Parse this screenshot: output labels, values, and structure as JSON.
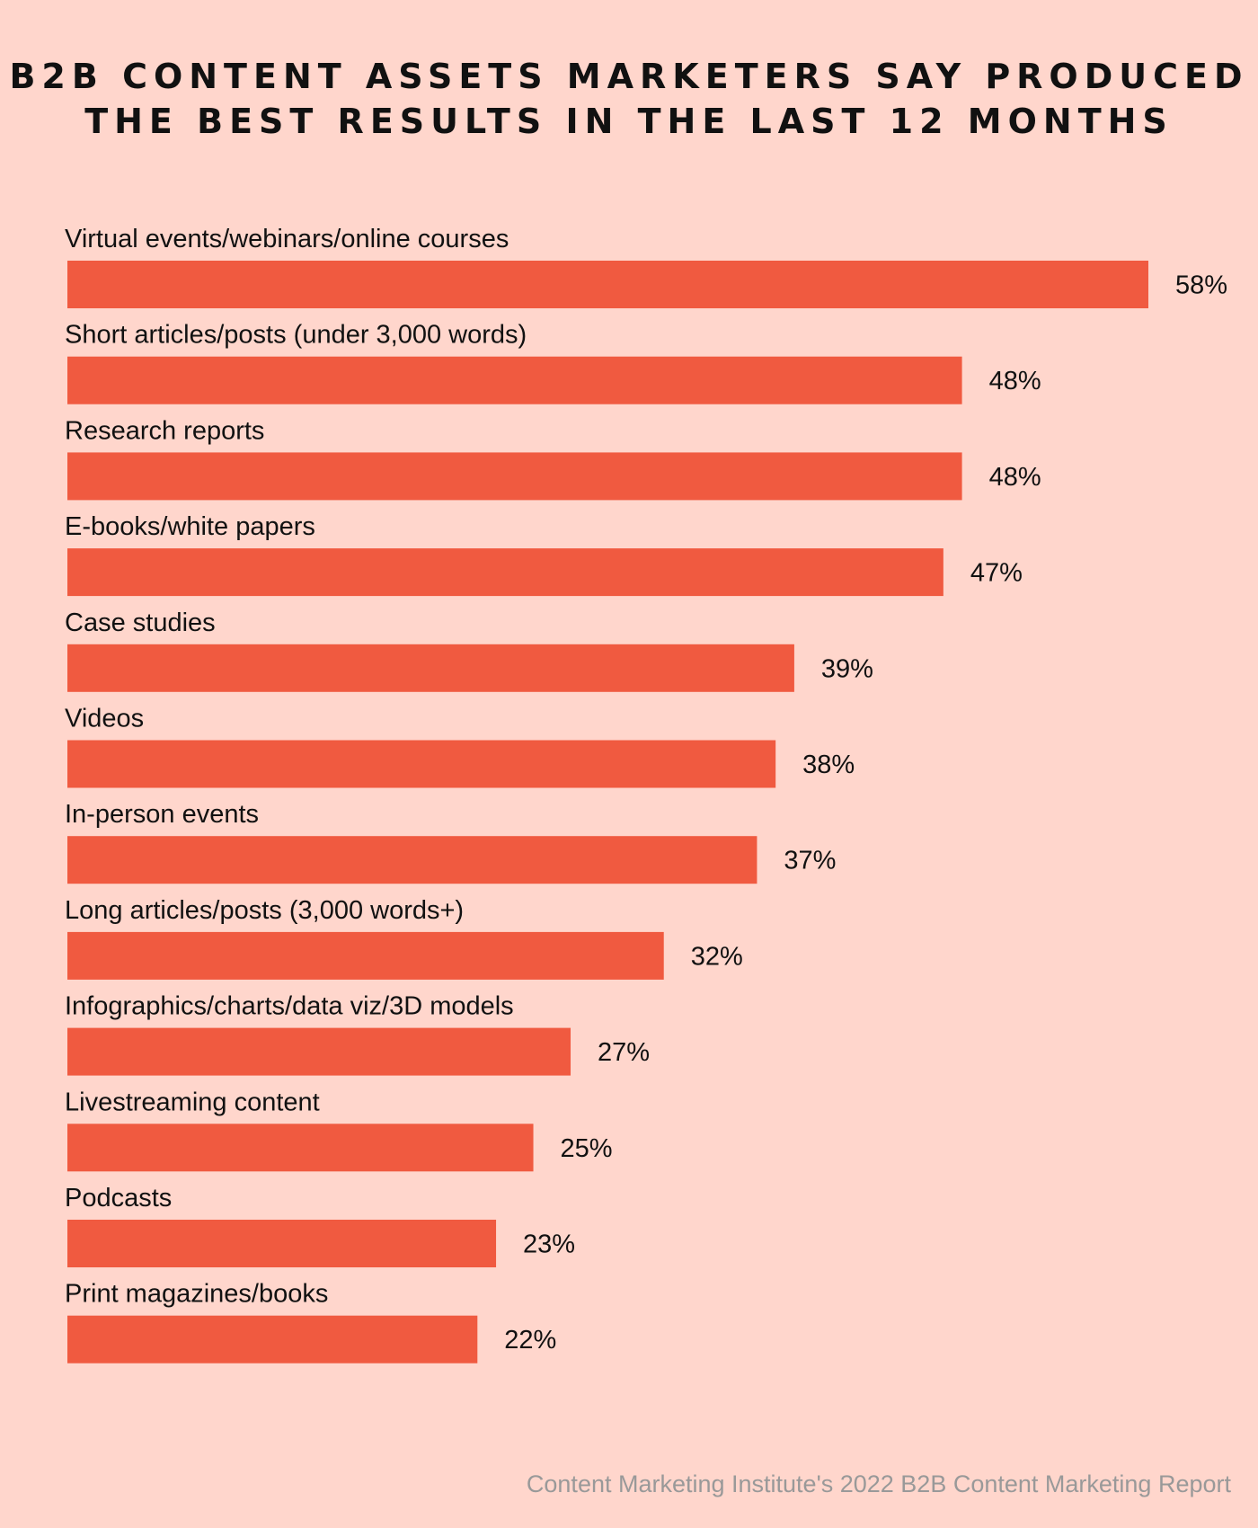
{
  "colors": {
    "background": "#FFD6CC",
    "bar": "#F05A40",
    "text": "#111111",
    "source_text": "#999999"
  },
  "chart_data": {
    "type": "bar",
    "orientation": "horizontal",
    "title_lines": [
      "B2B CONTENT ASSETS MARKETERS SAY PRODUCED",
      "THE BEST RESULTS IN THE LAST 12 MONTHS"
    ],
    "categories": [
      "Virtual events/webinars/online courses",
      "Short articles/posts (under 3,000 words)",
      "Research reports",
      "E-books/white papers",
      "Case studies",
      "Videos",
      "In-person events",
      "Long articles/posts (3,000 words+)",
      "Infographics/charts/data viz/3D models",
      "Livestreaming content",
      "Podcasts",
      "Print magazines/books"
    ],
    "values": [
      58,
      48,
      48,
      47,
      39,
      38,
      37,
      32,
      27,
      25,
      23,
      22
    ],
    "value_labels": [
      "58%",
      "48%",
      "48%",
      "47%",
      "39%",
      "38%",
      "37%",
      "32%",
      "27%",
      "25%",
      "23%",
      "22%"
    ],
    "xlim": [
      0,
      58
    ],
    "grid": false,
    "legend": "none",
    "source": "Content Marketing Institute's 2022 B2B Content Marketing Report"
  }
}
